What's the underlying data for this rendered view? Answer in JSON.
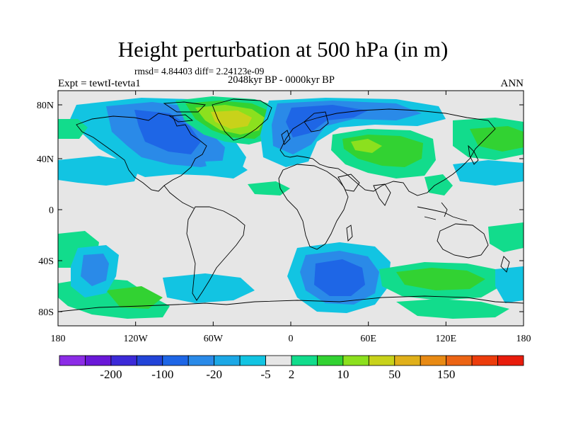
{
  "title": "Height perturbation at 500 hPa (in m)",
  "stats": "rmsd= 4.84403 diff= 2.24123e-09",
  "period": "2048kyr BP - 0000kyr BP",
  "experiment": "Expt = tewtI-tevta1",
  "season": "ANN",
  "axes": {
    "lon_ticks": [
      "180",
      "120W",
      "60W",
      "0",
      "60E",
      "120E",
      "180"
    ],
    "lat_ticks": [
      "80N",
      "40N",
      "0",
      "40S",
      "80S"
    ]
  },
  "colorbar": {
    "labels": [
      "-200",
      "-100",
      "-20",
      "-5",
      "2",
      "10",
      "50",
      "150"
    ],
    "colors": [
      "#8c2ce6",
      "#6a18d8",
      "#3c2ad8",
      "#2244d8",
      "#1e66e6",
      "#2a8ae8",
      "#1ca8e6",
      "#12c4e2",
      "#e6e6e6",
      "#12dc8c",
      "#32d232",
      "#8ce01e",
      "#c8d21a",
      "#e0b01a",
      "#e88a14",
      "#ec6414",
      "#ec3c0c",
      "#e81c0c"
    ]
  },
  "palette": {
    "neutral": "#e6e6e6",
    "cyan": "#12c4e2",
    "lightblue": "#2a8ae8",
    "blue": "#1e66e6",
    "teal": "#12dc8c",
    "green": "#32d232",
    "yellowgreen": "#8ce01e",
    "olive": "#c8d21a",
    "coast": "#000000"
  }
}
